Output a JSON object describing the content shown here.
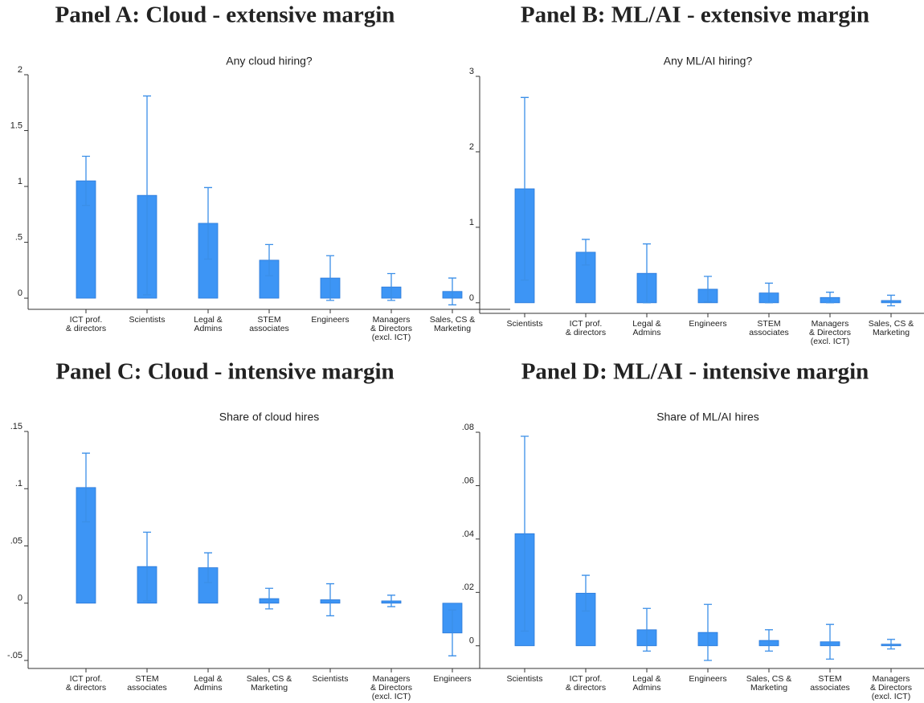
{
  "chart_data": [
    {
      "type": "bar",
      "title": "Panel A: Cloud - extensive margin",
      "subtitle": "Any cloud hiring?",
      "categories": [
        "ICT prof.\n& directors",
        "Scientists",
        "Legal &\nAdmins",
        "STEM\nassociates",
        "Engineers",
        "Managers\n& Directors\n(excl. ICT)",
        "Sales, CS &\nMarketing"
      ],
      "values": [
        1.05,
        0.92,
        0.67,
        0.34,
        0.18,
        0.1,
        0.06
      ],
      "errors": [
        0.22,
        0.89,
        0.32,
        0.14,
        0.2,
        0.12,
        0.12
      ],
      "color": "#3d95f5",
      "ylim": [
        -0.1,
        2.0
      ],
      "yticks": [
        0,
        {
          "value": 0.5,
          "label": ".5"
        },
        1,
        1.5,
        2
      ]
    },
    {
      "type": "bar",
      "title": "Panel B: ML/AI - extensive margin",
      "subtitle": "Any ML/AI hiring?",
      "categories": [
        "Scientists",
        "ICT prof.\n& directors",
        "Legal &\nAdmins",
        "Engineers",
        "STEM\nassociates",
        "Managers\n& Directors\n(excl. ICT)",
        "Sales, CS &\nMarketing"
      ],
      "values": [
        1.51,
        0.67,
        0.39,
        0.18,
        0.13,
        0.07,
        0.03
      ],
      "errors": [
        1.21,
        0.17,
        0.39,
        0.17,
        0.13,
        0.07,
        0.07
      ],
      "color": "#3d95f5",
      "ylim": [
        -0.14,
        3.0
      ],
      "yticks": [
        0,
        1,
        2,
        3
      ]
    },
    {
      "type": "bar",
      "title": "Panel C: Cloud - intensive margin",
      "subtitle": "Share of cloud hires",
      "categories": [
        "ICT prof.\n& directors",
        "STEM\nassociates",
        "Legal &\nAdmins",
        "Sales, CS &\nMarketing",
        "Scientists",
        "Managers\n& Directors\n(excl. ICT)",
        "Engineers"
      ],
      "values": [
        0.101,
        0.032,
        0.031,
        0.004,
        0.003,
        0.002,
        -0.026
      ],
      "errors": [
        0.03,
        0.03,
        0.013,
        0.009,
        0.014,
        0.005,
        0.02
      ],
      "color": "#3d95f5",
      "ylim": [
        -0.057,
        0.15
      ],
      "yticks": [
        {
          "value": -0.05,
          "label": "-.05"
        },
        0,
        {
          "value": 0.05,
          "label": ".05"
        },
        {
          "value": 0.1,
          "label": ".1"
        },
        {
          "value": 0.15,
          "label": ".15"
        }
      ]
    },
    {
      "type": "bar",
      "title": "Panel D: ML/AI - intensive margin",
      "subtitle": "Share of ML/AI hires",
      "categories": [
        "Scientists",
        "ICT prof.\n& directors",
        "Legal &\nAdmins",
        "Engineers",
        "Sales, CS &\nMarketing",
        "STEM\nassociates",
        "Managers\n& Directors\n(excl. ICT)"
      ],
      "values": [
        0.042,
        0.0197,
        0.006,
        0.005,
        0.002,
        0.0015,
        0.0006
      ],
      "errors": [
        0.0365,
        0.0067,
        0.008,
        0.0105,
        0.004,
        0.0065,
        0.0018
      ],
      "color": "#3d95f5",
      "ylim": [
        -0.0085,
        0.08
      ],
      "yticks": [
        0,
        {
          "value": 0.02,
          "label": ".02"
        },
        {
          "value": 0.04,
          "label": ".04"
        },
        {
          "value": 0.06,
          "label": ".06"
        },
        {
          "value": 0.08,
          "label": ".08"
        }
      ]
    }
  ]
}
